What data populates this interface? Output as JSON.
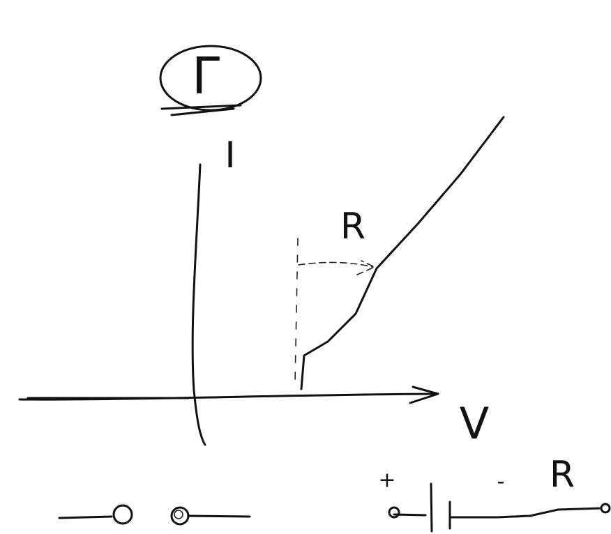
{
  "labels": {
    "gamma": "Γ",
    "current": "I",
    "resistance": "R",
    "voltage": "V",
    "plus": "+",
    "minus": "-",
    "resistor": "R"
  }
}
